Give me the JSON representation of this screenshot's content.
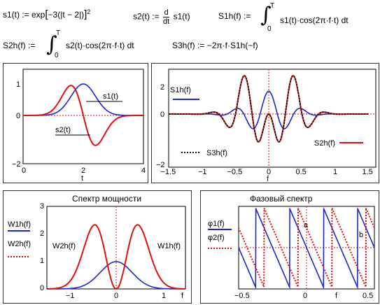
{
  "equations": {
    "s1": {
      "lhs": "s1(t) := exp",
      "rhs": "−3(|t − 2|)",
      "pow": "2"
    },
    "s2": {
      "lhs": "s2(t) :=",
      "num": "d",
      "den": "dt",
      "rhs": "s1(t)"
    },
    "S1h": {
      "lhs": "S1h(f) :=",
      "upper": "T",
      "lower": "0",
      "body": "s1(t)·cos(2π·f·t) dt"
    },
    "S2h": {
      "lhs": "S2h(f) :=",
      "upper": "T",
      "lower": "0",
      "body": "s2(t)·cos(2π·f·t) dt"
    },
    "S3h": {
      "text": "S3h(f) := −2π·f·S1h(−f)"
    }
  },
  "panels": {
    "time": {
      "xticks": [
        "0",
        "2",
        "4"
      ],
      "yticks": [
        "1",
        "0",
        "−2"
      ],
      "xlabel": "t",
      "legend": {
        "s1": "s1(t)",
        "s2": "s2(t)"
      }
    },
    "cos": {
      "xticks": [
        "−1.5",
        "−1",
        "−0.5",
        "0",
        "0.5",
        "1",
        "1.5"
      ],
      "yticks": [
        "2",
        "0",
        "−2"
      ],
      "xlabel": "f",
      "legend": {
        "S1h": "S1h(f)",
        "S3h": "S3h(f)",
        "S2h": "S2h(f)"
      }
    },
    "power": {
      "title": "Спектр мощности",
      "xticks": [
        "−1",
        "0",
        "1",
        "f"
      ],
      "yticks": [
        "3",
        "2",
        "1",
        "0"
      ],
      "legend": {
        "W1h": "W1h(f)",
        "W2h": "W2h(f)",
        "w2in": "W2h(f)",
        "w1in": "W1h(f)"
      }
    },
    "phase": {
      "title": "Фазовый спектр",
      "xticks": [
        "−0.5",
        "0",
        "f",
        "0.5"
      ],
      "legend": {
        "phi1": "φ1(f)",
        "phi2": "φ2(f)",
        "mark_a": "a",
        "mark_b": "b"
      }
    }
  },
  "colors": {
    "blue": "#1a28c8",
    "red": "#e01010",
    "black": "#111111",
    "axis_ref": "#e01010"
  },
  "chart_data": [
    {
      "type": "line",
      "title": "",
      "xlabel": "t",
      "ylabel": "",
      "xlim": [
        0,
        4
      ],
      "ylim": [
        -2,
        1
      ],
      "series": [
        {
          "name": "s1(t)",
          "formula": "exp(-3(t-2)^2)"
        },
        {
          "name": "s2(t)",
          "formula": "-6(t-2)exp(-3(t-2)^2)"
        }
      ]
    },
    {
      "type": "line",
      "title": "",
      "xlabel": "f",
      "ylabel": "",
      "xlim": [
        -1.5,
        1.5
      ],
      "ylim": [
        -2.3,
        1.9
      ],
      "series": [
        {
          "name": "S1h(f)"
        },
        {
          "name": "S3h(f)"
        },
        {
          "name": "S2h(f)"
        }
      ]
    },
    {
      "type": "line",
      "title": "Спектр мощности",
      "xlabel": "f",
      "xlim": [
        -1.4,
        1.4
      ],
      "ylim": [
        0,
        3
      ],
      "series": [
        {
          "name": "W1h(f)",
          "peak": 1.0
        },
        {
          "name": "W2h(f)",
          "peak": 2.35
        }
      ]
    },
    {
      "type": "line",
      "title": "Фазовый спектр",
      "xlabel": "f",
      "xlim": [
        -0.5,
        0.5
      ],
      "series": [
        {
          "name": "φ1(f)"
        },
        {
          "name": "φ2(f)"
        }
      ]
    }
  ]
}
